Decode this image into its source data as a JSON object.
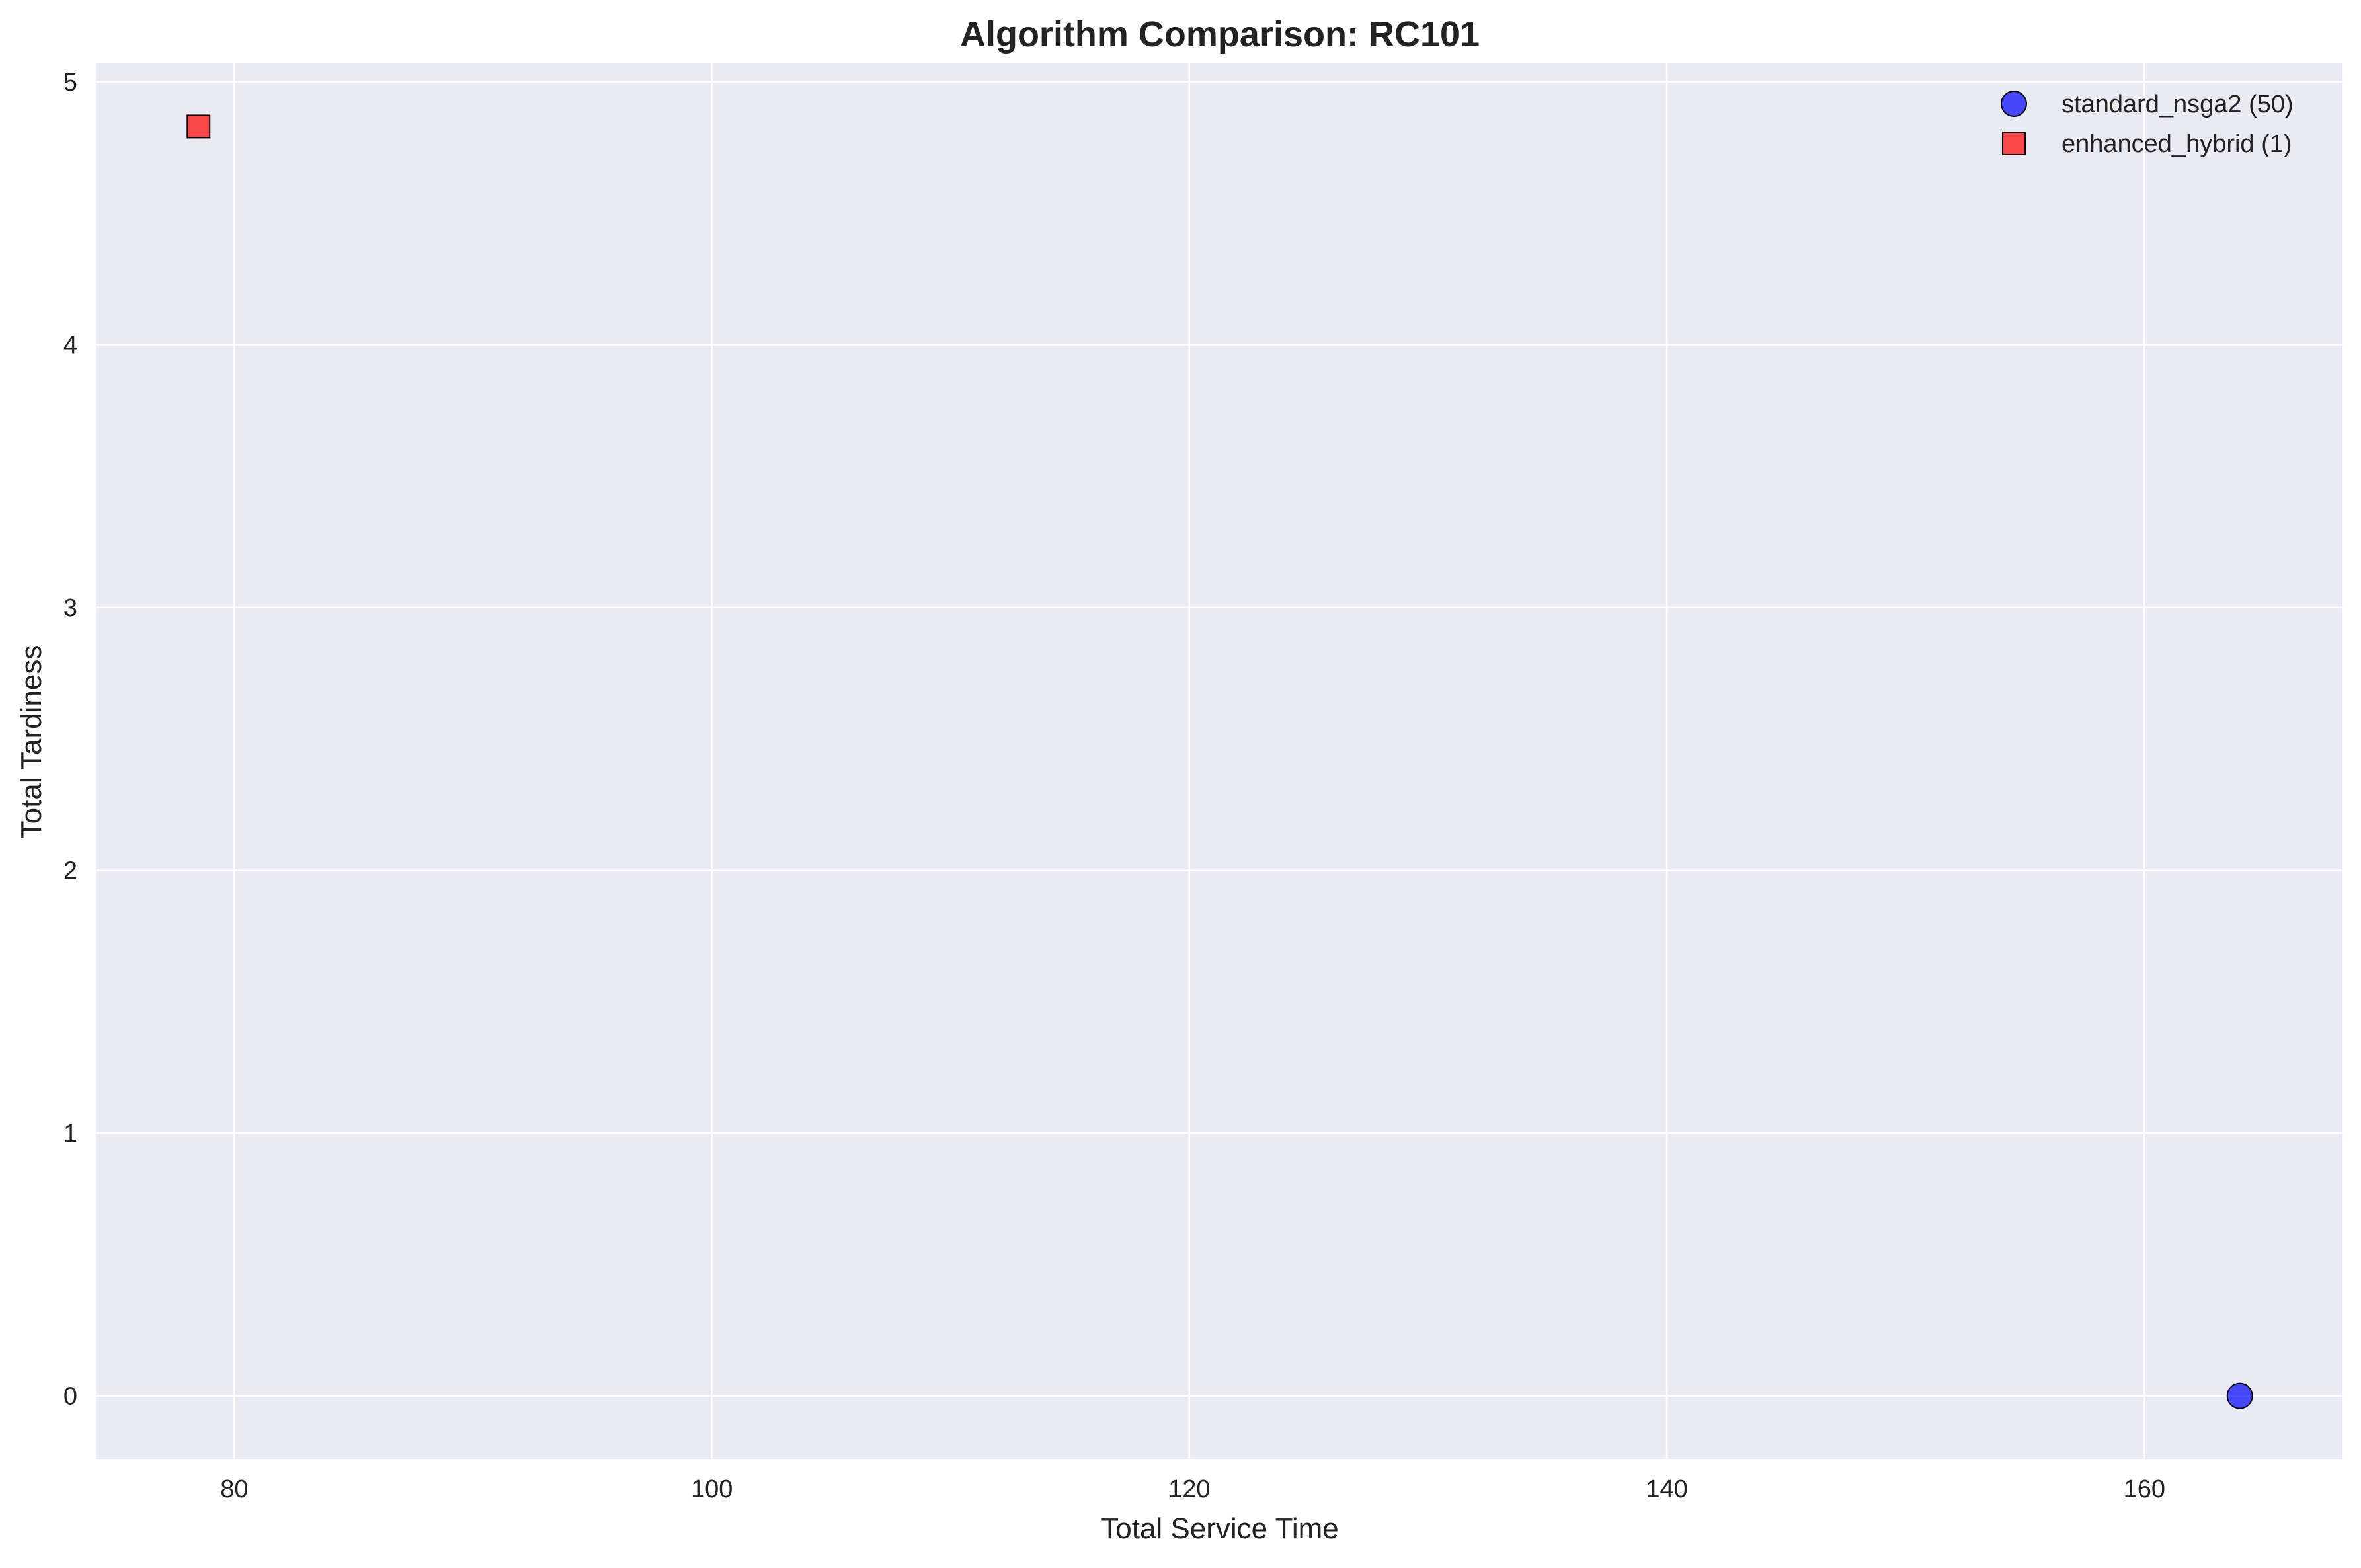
{
  "chart_data": {
    "type": "scatter",
    "title": "Algorithm Comparison: RC101",
    "xlabel": "Total Service Time",
    "ylabel": "Total Tardiness",
    "xlim": [
      74.2,
      168.3
    ],
    "ylim": [
      -0.24,
      5.07
    ],
    "xticks": [
      80,
      100,
      120,
      140,
      160
    ],
    "yticks": [
      0,
      1,
      2,
      3,
      4,
      5
    ],
    "grid": true,
    "legend_position": "top-right",
    "background_color": "#eaeaf2",
    "grid_color": "#ffffff",
    "series": [
      {
        "name": "standard_nsga2 (50)",
        "marker": "circle",
        "color": "#0000ff",
        "points": [
          [
            164.0,
            0.0
          ]
        ]
      },
      {
        "name": "enhanced_hybrid (1)",
        "marker": "square",
        "color": "#ff0000",
        "points": [
          [
            78.5,
            4.83
          ]
        ]
      }
    ]
  }
}
